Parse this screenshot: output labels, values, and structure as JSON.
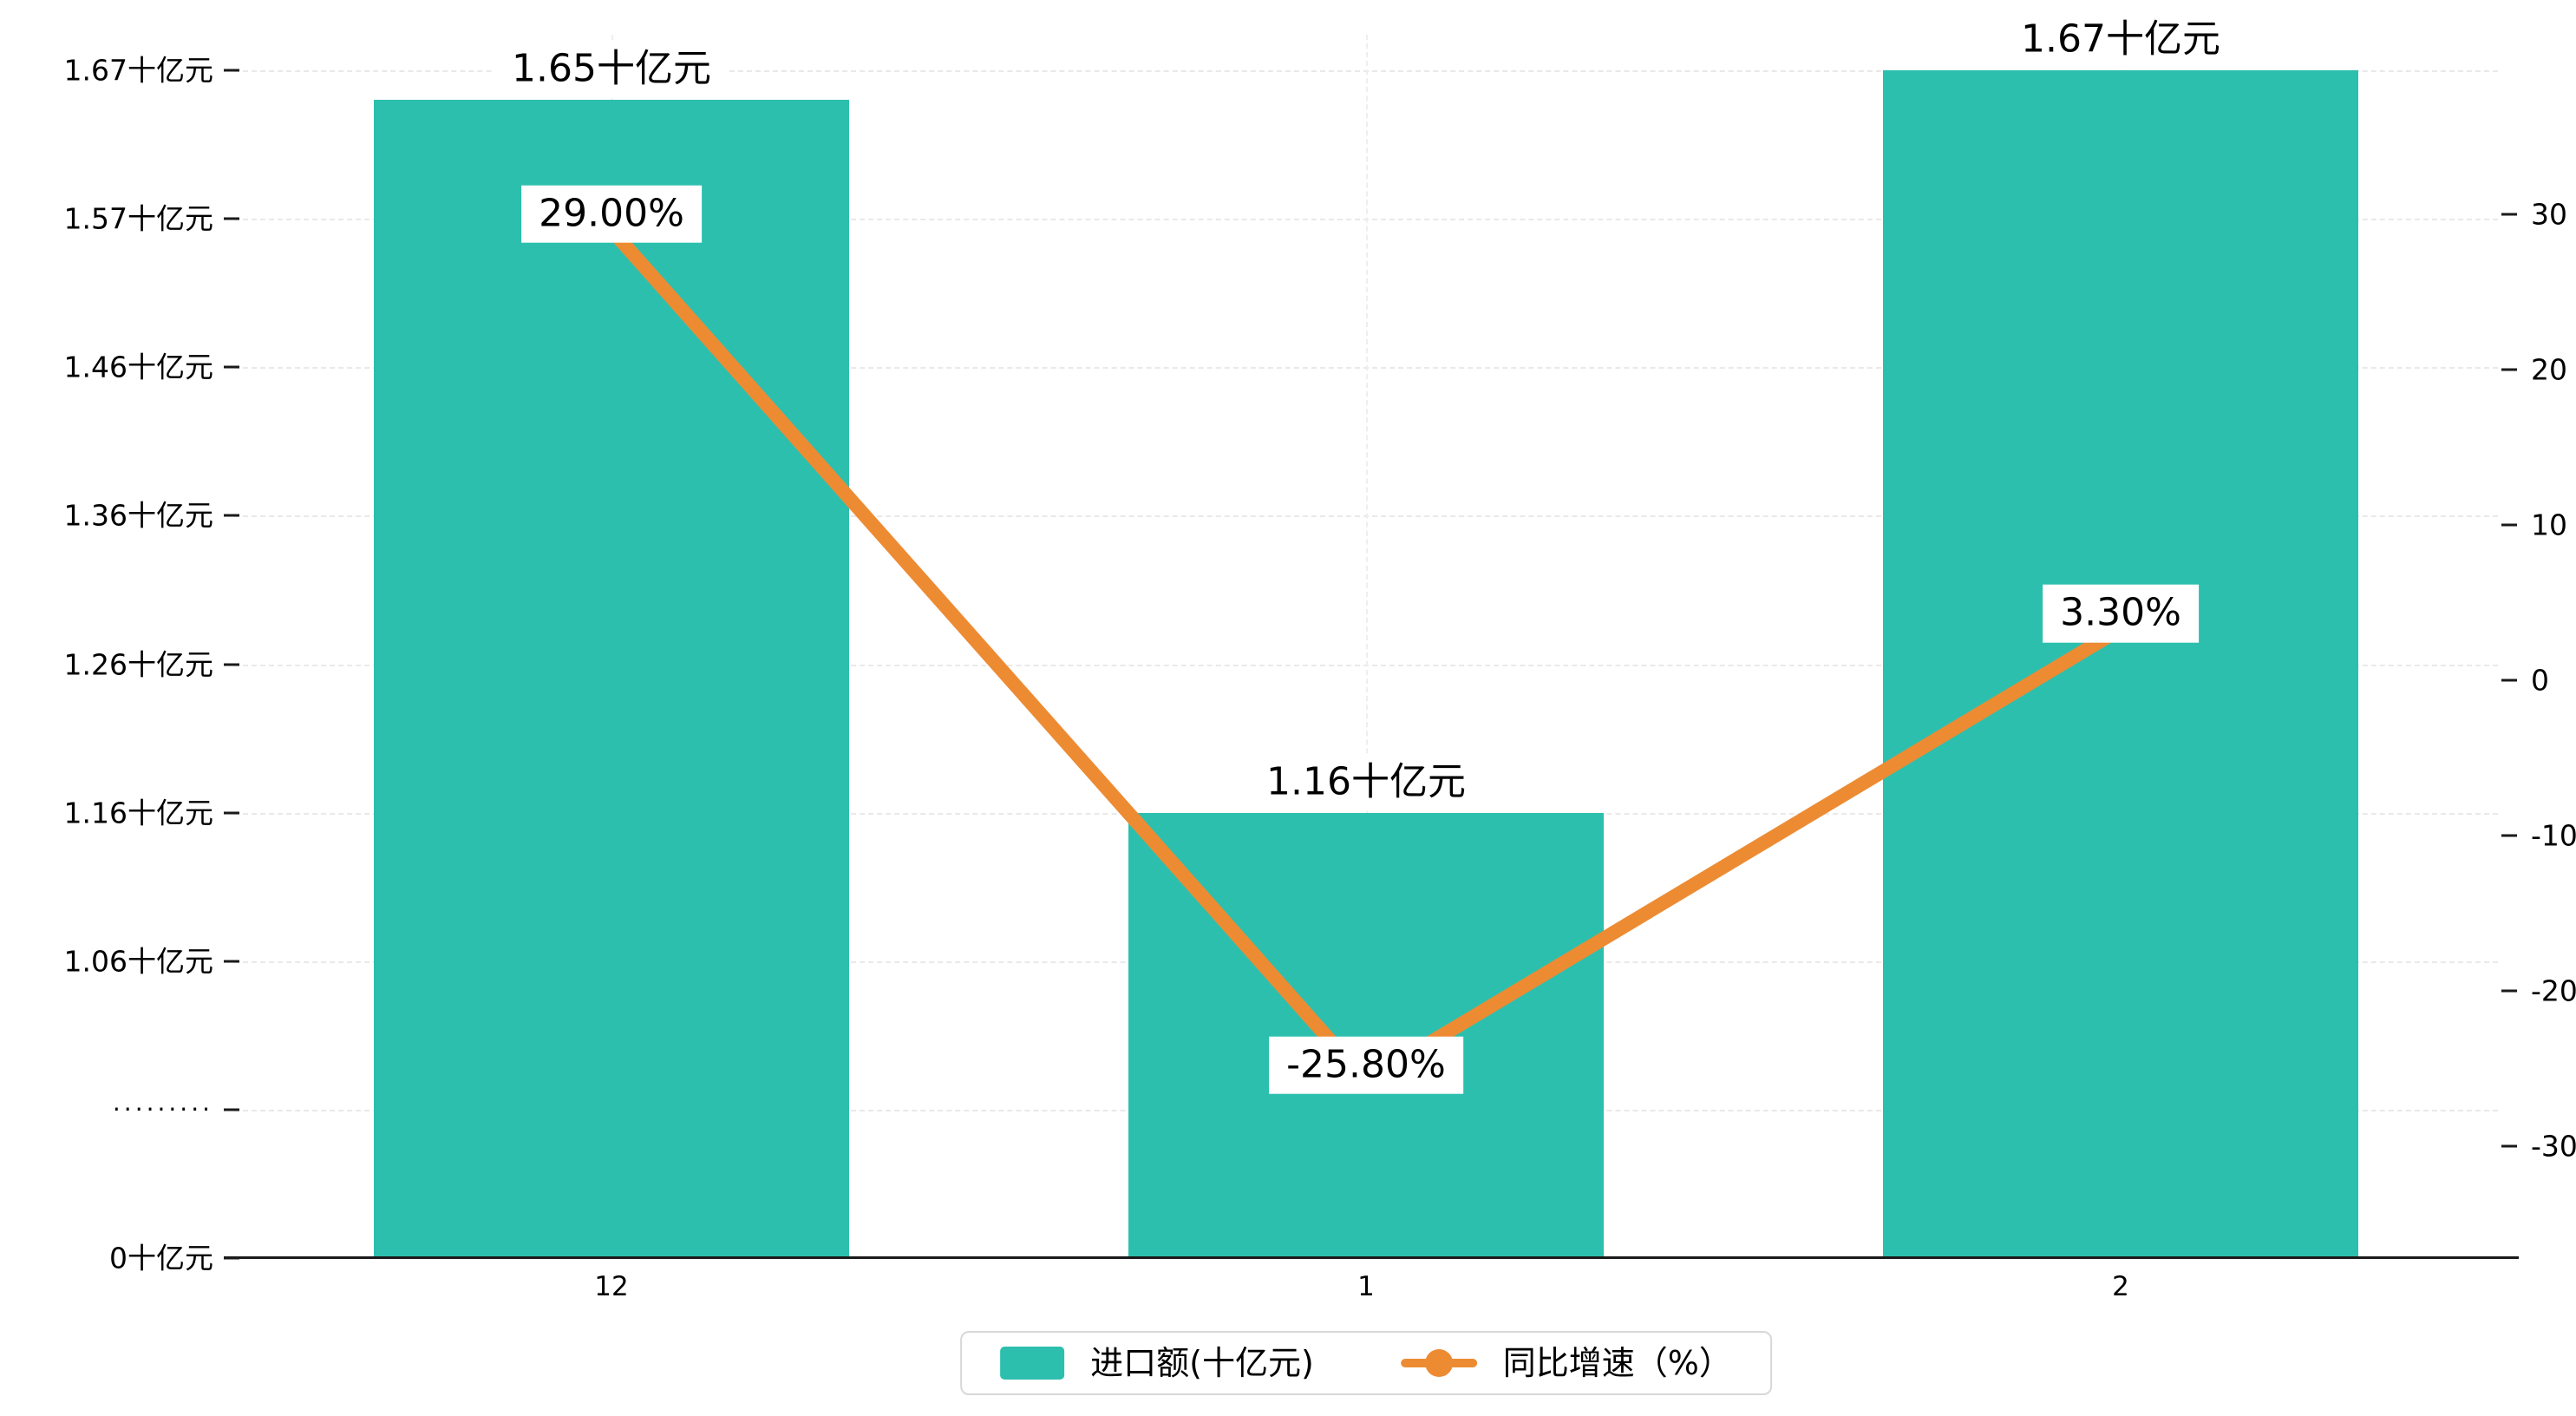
{
  "chart_data": {
    "type": "bar",
    "categories": [
      "12",
      "1",
      "2"
    ],
    "series": [
      {
        "name": "进口额(十亿元)",
        "kind": "bar",
        "axis": "left",
        "values": [
          1.65,
          1.16,
          1.67
        ],
        "value_labels": [
          "1.65十亿元",
          "1.16十亿元",
          "1.67十亿元"
        ],
        "color": "#2dbfae"
      },
      {
        "name": "同比增速（%）",
        "kind": "line",
        "axis": "right",
        "values": [
          29.0,
          -25.8,
          3.3
        ],
        "value_labels": [
          "29.00%",
          "-25.80%",
          "3.30%"
        ],
        "color": "#ed8b33"
      }
    ],
    "left_axis": {
      "tick_labels": [
        "1.67十亿元",
        "1.57十亿元",
        "1.46十亿元",
        "1.36十亿元",
        "1.26十亿元",
        "1.16十亿元",
        "1.06十亿元",
        "·········",
        "0十亿元"
      ],
      "tick_values": [
        1.67,
        1.57,
        1.46,
        1.36,
        1.26,
        1.16,
        1.06,
        null,
        0
      ],
      "broken_axis": true
    },
    "right_axis": {
      "tick_labels": [
        "30",
        "20",
        "10",
        "0",
        "-10",
        "-20",
        "-30"
      ],
      "tick_values": [
        30,
        20,
        10,
        0,
        -10,
        -20,
        -30
      ],
      "range": [
        -30,
        30
      ]
    },
    "x_axis": {
      "tick_labels": [
        "12",
        "1",
        "2"
      ]
    },
    "legend": {
      "position": "bottom-center",
      "items": [
        {
          "label": "进口额(十亿元)",
          "marker": "bar-swatch",
          "color": "#2dbfae"
        },
        {
          "label": "同比增速（%）",
          "marker": "line-dot",
          "color": "#ed8b33"
        }
      ]
    },
    "grid": true,
    "title": ""
  },
  "colors": {
    "bar": "#2dbfae",
    "line": "#ed8b33",
    "grid": "#e9e9e9",
    "axis": "#1a1a1a",
    "text": "#000000",
    "label_background": "#ffffff",
    "legend_border": "#d8d8d8",
    "background": "#ffffff"
  }
}
